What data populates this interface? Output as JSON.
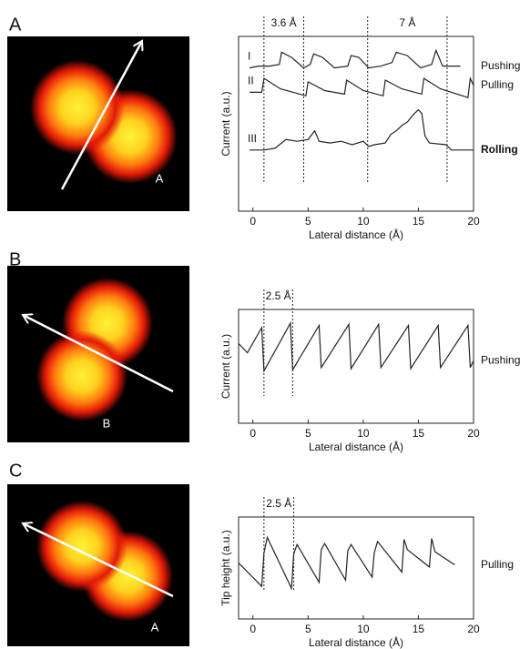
{
  "panels": [
    {
      "letter": "A",
      "image_label": "A"
    },
    {
      "letter": "B",
      "image_label": "B"
    },
    {
      "letter": "C",
      "image_label": "A"
    }
  ],
  "chart_data": [
    {
      "type": "line",
      "x_label": "Lateral distance (Å)",
      "y_label": "Current (a.u.)",
      "xlim": [
        -1.3,
        20
      ],
      "xticks": [
        0,
        5,
        10,
        15,
        20
      ],
      "ylim": [
        0,
        10
      ],
      "markers": [
        1,
        4.6,
        10.4,
        17.6
      ],
      "annotations": [
        "3.6 Å",
        "7 Å"
      ],
      "color": "#222222",
      "series": [
        {
          "name": "I",
          "label": "Pushing",
          "x": [
            -0.3,
            0.5,
            1.5,
            2.4,
            2.6,
            3.5,
            4.6,
            5.2,
            5.5,
            6.3,
            7.4,
            8.6,
            8.9,
            9.6,
            10.5,
            11.6,
            12.6,
            13,
            14,
            15.2,
            16.2,
            16.6,
            17.2,
            18.8
          ],
          "values": [
            8.2,
            8.3,
            8.3,
            8.4,
            9.1,
            8.8,
            8.2,
            8.4,
            9.0,
            8.8,
            8.2,
            8.3,
            8.9,
            8.8,
            8.2,
            8.3,
            8.5,
            9.1,
            8.9,
            8.2,
            8.4,
            9.2,
            8.3,
            8.3
          ]
        },
        {
          "name": "II",
          "label": "Pulling",
          "x": [
            -0.3,
            0.8,
            1.0,
            2.5,
            4.8,
            5.0,
            6.5,
            8.3,
            8.5,
            10,
            11.8,
            12.0,
            13.5,
            15.3,
            15.5,
            17,
            19.5,
            19.7,
            20
          ],
          "values": [
            6.8,
            6.8,
            7.6,
            7.0,
            6.6,
            7.4,
            6.9,
            6.7,
            7.5,
            6.9,
            6.6,
            7.5,
            7.0,
            6.7,
            7.6,
            7.0,
            6.5,
            7.6,
            7.2
          ]
        },
        {
          "name": "III",
          "label": "Rolling",
          "label_bold": true,
          "x": [
            -0.3,
            1,
            2,
            3,
            4,
            5,
            5.6,
            6,
            7,
            8,
            9,
            10,
            10.5,
            11,
            12,
            12.5,
            13,
            13.5,
            14,
            14.5,
            15,
            15.3,
            15.6,
            16,
            17.5,
            18,
            20
          ],
          "values": [
            3.5,
            3.5,
            3.6,
            4.1,
            4.0,
            4.1,
            4.6,
            4.0,
            3.9,
            4.0,
            3.8,
            4.0,
            3.7,
            3.8,
            3.9,
            4.4,
            4.6,
            4.9,
            5.1,
            5.5,
            5.8,
            5.6,
            4.3,
            3.9,
            3.8,
            3.5,
            3.5
          ]
        }
      ]
    },
    {
      "type": "line",
      "x_label": "Lateral distance (Å)",
      "y_label": "Current (a.u.)",
      "xlim": [
        -1.3,
        20
      ],
      "xticks": [
        0,
        5,
        10,
        15,
        20
      ],
      "ylim": [
        0,
        10
      ],
      "markers": [
        1.0,
        3.6
      ],
      "annotations": [
        "2.5 Å"
      ],
      "color": "#222222",
      "series": [
        {
          "label": "Pushing",
          "x": [
            -1.3,
            -0.5,
            0.8,
            1.0,
            3.4,
            3.6,
            6.0,
            6.2,
            8.7,
            8.9,
            11.4,
            11.6,
            14.1,
            14.3,
            16.8,
            17.0,
            19.5,
            19.7,
            20
          ],
          "values": [
            7.0,
            6.2,
            8.4,
            4.6,
            8.8,
            4.7,
            8.6,
            4.9,
            8.7,
            4.8,
            8.7,
            4.9,
            8.6,
            4.8,
            8.6,
            4.9,
            8.6,
            4.9,
            5.5
          ]
        }
      ]
    },
    {
      "type": "line",
      "x_label": "Lateral distance (Å)",
      "y_label": "Tip height (a.u.)",
      "xlim": [
        -1.3,
        20
      ],
      "xticks": [
        0,
        5,
        10,
        15,
        20
      ],
      "ylim": [
        0,
        10
      ],
      "markers": [
        1.0,
        3.7
      ],
      "annotations": [
        "2.5 Å"
      ],
      "color": "#222222",
      "series": [
        {
          "label": "Pulling",
          "x": [
            -1.3,
            0.8,
            1.0,
            1.3,
            3.5,
            3.7,
            4.0,
            6.0,
            6.2,
            6.5,
            8.4,
            8.6,
            8.9,
            10.8,
            11.0,
            11.3,
            13.5,
            13.7,
            14,
            16.0,
            16.2,
            16.5,
            18.3
          ],
          "values": [
            5.5,
            3.2,
            6.5,
            8.0,
            3.0,
            6.4,
            7.3,
            3.6,
            6.8,
            7.4,
            3.8,
            6.7,
            7.3,
            4.1,
            6.5,
            7.6,
            4.6,
            7.8,
            6.8,
            5.1,
            7.9,
            6.6,
            5.3
          ]
        }
      ]
    }
  ]
}
